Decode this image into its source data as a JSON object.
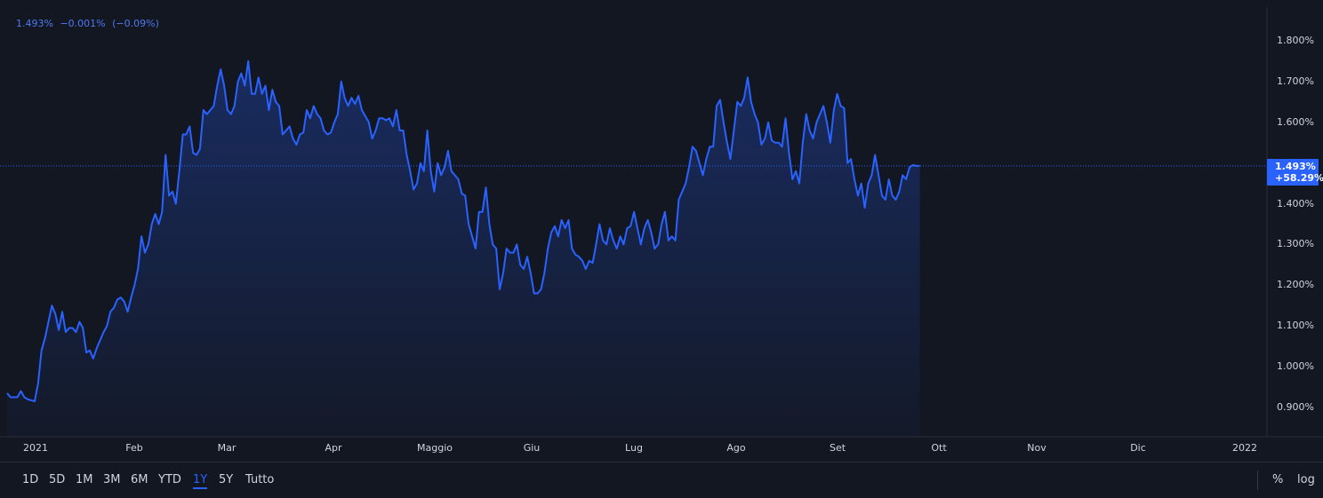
{
  "legend": {
    "value": "1.493%",
    "change": "−0.001%",
    "change_pct": "(−0.09%)"
  },
  "price_tag": {
    "value": "1.493%",
    "change_pct": "+58.29%"
  },
  "colors": {
    "line": "#2962ff",
    "background": "#131722",
    "accent": "#2962ff"
  },
  "toolbar": {
    "ranges": [
      "1D",
      "5D",
      "1M",
      "3M",
      "6M",
      "YTD",
      "1Y",
      "5Y",
      "Tutto"
    ],
    "active_range": "1Y",
    "percent_label": "%",
    "log_label": "log"
  },
  "chart_data": {
    "type": "area",
    "x_ticks": [
      "2021",
      "Feb",
      "Mar",
      "Apr",
      "Maggio",
      "Giu",
      "Lug",
      "Ago",
      "Set",
      "Ott",
      "Nov",
      "Dic",
      "2022"
    ],
    "y_ticks": [
      "1.800%",
      "1.700%",
      "1.600%",
      "1.500%",
      "1.400%",
      "1.300%",
      "1.200%",
      "1.100%",
      "1.000%",
      "0.900%"
    ],
    "y_tick_values": [
      1.8,
      1.7,
      1.6,
      1.5,
      1.4,
      1.3,
      1.2,
      1.1,
      1.0,
      0.9
    ],
    "ylim": [
      0.85,
      1.86
    ],
    "x_range": [
      "2021-01-01",
      "2022-01-01"
    ],
    "last_value": 1.493,
    "grid": false,
    "series": [
      {
        "values": [
          [
            "2021-01-01",
            0.935
          ],
          [
            "2021-01-02",
            0.925
          ],
          [
            "2021-01-04",
            0.925
          ],
          [
            "2021-01-05",
            0.94
          ],
          [
            "2021-01-06",
            0.925
          ],
          [
            "2021-01-07",
            0.92
          ],
          [
            "2021-01-09",
            0.915
          ],
          [
            "2021-01-10",
            0.96
          ],
          [
            "2021-01-11",
            1.04
          ],
          [
            "2021-01-12",
            1.07
          ],
          [
            "2021-01-14",
            1.15
          ],
          [
            "2021-01-15",
            1.13
          ],
          [
            "2021-01-16",
            1.09
          ],
          [
            "2021-01-17",
            1.135
          ],
          [
            "2021-01-18",
            1.085
          ],
          [
            "2021-01-19",
            1.095
          ],
          [
            "2021-01-20",
            1.095
          ],
          [
            "2021-01-21",
            1.085
          ],
          [
            "2021-01-22",
            1.11
          ],
          [
            "2021-01-23",
            1.095
          ],
          [
            "2021-01-24",
            1.035
          ],
          [
            "2021-01-25",
            1.04
          ],
          [
            "2021-01-26",
            1.02
          ],
          [
            "2021-01-27",
            1.045
          ],
          [
            "2021-01-28",
            1.065
          ],
          [
            "2021-01-29",
            1.085
          ],
          [
            "2021-01-30",
            1.1
          ],
          [
            "2021-01-31",
            1.135
          ],
          [
            "2021-02-01",
            1.145
          ],
          [
            "2021-02-02",
            1.165
          ],
          [
            "2021-02-03",
            1.17
          ],
          [
            "2021-02-04",
            1.16
          ],
          [
            "2021-02-05",
            1.135
          ],
          [
            "2021-02-06",
            1.17
          ],
          [
            "2021-02-07",
            1.2
          ],
          [
            "2021-02-08",
            1.24
          ],
          [
            "2021-02-09",
            1.32
          ],
          [
            "2021-02-10",
            1.28
          ],
          [
            "2021-02-11",
            1.3
          ],
          [
            "2021-02-12",
            1.35
          ],
          [
            "2021-02-13",
            1.375
          ],
          [
            "2021-02-14",
            1.35
          ],
          [
            "2021-02-15",
            1.38
          ],
          [
            "2021-02-16",
            1.52
          ],
          [
            "2021-02-17",
            1.42
          ],
          [
            "2021-02-18",
            1.43
          ],
          [
            "2021-02-19",
            1.4
          ],
          [
            "2021-02-20",
            1.48
          ],
          [
            "2021-02-21",
            1.57
          ],
          [
            "2021-02-22",
            1.57
          ],
          [
            "2021-02-23",
            1.59
          ],
          [
            "2021-02-24",
            1.525
          ],
          [
            "2021-02-25",
            1.52
          ],
          [
            "2021-02-26",
            1.535
          ],
          [
            "2021-02-27",
            1.63
          ],
          [
            "2021-02-28",
            1.62
          ],
          [
            "2021-03-01",
            1.63
          ],
          [
            "2021-03-02",
            1.64
          ],
          [
            "2021-03-03",
            1.69
          ],
          [
            "2021-03-04",
            1.73
          ],
          [
            "2021-03-05",
            1.69
          ],
          [
            "2021-03-06",
            1.63
          ],
          [
            "2021-03-07",
            1.62
          ],
          [
            "2021-03-08",
            1.64
          ],
          [
            "2021-03-09",
            1.7
          ],
          [
            "2021-03-10",
            1.72
          ],
          [
            "2021-03-11",
            1.69
          ],
          [
            "2021-03-12",
            1.75
          ],
          [
            "2021-03-13",
            1.67
          ],
          [
            "2021-03-14",
            1.67
          ],
          [
            "2021-03-15",
            1.71
          ],
          [
            "2021-03-16",
            1.67
          ],
          [
            "2021-03-17",
            1.69
          ],
          [
            "2021-03-18",
            1.63
          ],
          [
            "2021-03-19",
            1.68
          ],
          [
            "2021-03-20",
            1.65
          ],
          [
            "2021-03-21",
            1.64
          ],
          [
            "2021-03-22",
            1.57
          ],
          [
            "2021-03-23",
            1.58
          ],
          [
            "2021-03-24",
            1.59
          ],
          [
            "2021-03-25",
            1.56
          ],
          [
            "2021-03-26",
            1.545
          ],
          [
            "2021-03-27",
            1.57
          ],
          [
            "2021-03-28",
            1.575
          ],
          [
            "2021-03-29",
            1.63
          ],
          [
            "2021-03-30",
            1.61
          ],
          [
            "2021-03-31",
            1.64
          ],
          [
            "2021-04-01",
            1.62
          ],
          [
            "2021-04-02",
            1.61
          ],
          [
            "2021-04-03",
            1.58
          ],
          [
            "2021-04-04",
            1.57
          ],
          [
            "2021-04-05",
            1.575
          ],
          [
            "2021-04-06",
            1.6
          ],
          [
            "2021-04-07",
            1.62
          ],
          [
            "2021-04-08",
            1.7
          ],
          [
            "2021-04-09",
            1.66
          ],
          [
            "2021-04-10",
            1.64
          ],
          [
            "2021-04-11",
            1.66
          ],
          [
            "2021-04-12",
            1.645
          ],
          [
            "2021-04-13",
            1.665
          ],
          [
            "2021-04-14",
            1.63
          ],
          [
            "2021-04-15",
            1.615
          ],
          [
            "2021-04-16",
            1.6
          ],
          [
            "2021-04-17",
            1.56
          ],
          [
            "2021-04-18",
            1.58
          ],
          [
            "2021-04-19",
            1.61
          ],
          [
            "2021-04-20",
            1.61
          ],
          [
            "2021-04-21",
            1.605
          ],
          [
            "2021-04-22",
            1.61
          ],
          [
            "2021-04-23",
            1.59
          ],
          [
            "2021-04-24",
            1.63
          ],
          [
            "2021-04-25",
            1.58
          ],
          [
            "2021-04-26",
            1.58
          ],
          [
            "2021-04-27",
            1.52
          ],
          [
            "2021-04-28",
            1.48
          ],
          [
            "2021-04-29",
            1.435
          ],
          [
            "2021-04-30",
            1.45
          ],
          [
            "2021-05-01",
            1.5
          ],
          [
            "2021-05-02",
            1.48
          ],
          [
            "2021-05-03",
            1.58
          ],
          [
            "2021-05-04",
            1.48
          ],
          [
            "2021-05-05",
            1.43
          ],
          [
            "2021-05-06",
            1.5
          ],
          [
            "2021-05-07",
            1.47
          ],
          [
            "2021-05-08",
            1.49
          ],
          [
            "2021-05-09",
            1.53
          ],
          [
            "2021-05-10",
            1.48
          ],
          [
            "2021-05-11",
            1.47
          ],
          [
            "2021-05-12",
            1.46
          ],
          [
            "2021-05-13",
            1.425
          ],
          [
            "2021-05-14",
            1.42
          ],
          [
            "2021-05-15",
            1.35
          ],
          [
            "2021-05-16",
            1.32
          ],
          [
            "2021-05-17",
            1.29
          ],
          [
            "2021-05-18",
            1.38
          ],
          [
            "2021-05-19",
            1.38
          ],
          [
            "2021-05-20",
            1.44
          ],
          [
            "2021-05-21",
            1.35
          ],
          [
            "2021-05-22",
            1.3
          ],
          [
            "2021-05-23",
            1.29
          ],
          [
            "2021-05-24",
            1.19
          ],
          [
            "2021-05-25",
            1.23
          ],
          [
            "2021-05-26",
            1.29
          ],
          [
            "2021-05-27",
            1.28
          ],
          [
            "2021-05-28",
            1.28
          ],
          [
            "2021-05-29",
            1.3
          ],
          [
            "2021-05-30",
            1.25
          ],
          [
            "2021-05-31",
            1.24
          ],
          [
            "2021-06-01",
            1.27
          ],
          [
            "2021-06-02",
            1.23
          ],
          [
            "2021-06-03",
            1.18
          ],
          [
            "2021-06-04",
            1.18
          ],
          [
            "2021-06-05",
            1.19
          ],
          [
            "2021-06-06",
            1.23
          ],
          [
            "2021-06-07",
            1.29
          ],
          [
            "2021-06-08",
            1.33
          ],
          [
            "2021-06-09",
            1.345
          ],
          [
            "2021-06-10",
            1.32
          ],
          [
            "2021-06-11",
            1.36
          ],
          [
            "2021-06-12",
            1.34
          ],
          [
            "2021-06-13",
            1.36
          ],
          [
            "2021-06-14",
            1.29
          ],
          [
            "2021-06-15",
            1.275
          ],
          [
            "2021-06-16",
            1.27
          ],
          [
            "2021-06-17",
            1.26
          ],
          [
            "2021-06-18",
            1.24
          ],
          [
            "2021-06-19",
            1.26
          ],
          [
            "2021-06-20",
            1.255
          ],
          [
            "2021-06-21",
            1.3
          ],
          [
            "2021-06-22",
            1.35
          ],
          [
            "2021-06-23",
            1.31
          ],
          [
            "2021-06-24",
            1.3
          ],
          [
            "2021-06-25",
            1.34
          ],
          [
            "2021-06-26",
            1.31
          ],
          [
            "2021-06-27",
            1.29
          ],
          [
            "2021-06-28",
            1.32
          ],
          [
            "2021-06-29",
            1.3
          ],
          [
            "2021-06-30",
            1.34
          ],
          [
            "2021-07-01",
            1.345
          ],
          [
            "2021-07-02",
            1.38
          ],
          [
            "2021-07-03",
            1.34
          ],
          [
            "2021-07-04",
            1.3
          ],
          [
            "2021-07-05",
            1.34
          ],
          [
            "2021-07-06",
            1.36
          ],
          [
            "2021-07-07",
            1.33
          ],
          [
            "2021-07-08",
            1.29
          ],
          [
            "2021-07-09",
            1.3
          ],
          [
            "2021-07-10",
            1.35
          ],
          [
            "2021-07-11",
            1.38
          ],
          [
            "2021-07-12",
            1.31
          ],
          [
            "2021-07-13",
            1.32
          ],
          [
            "2021-07-14",
            1.31
          ],
          [
            "2021-07-15",
            1.41
          ],
          [
            "2021-07-16",
            1.43
          ],
          [
            "2021-07-17",
            1.45
          ],
          [
            "2021-07-18",
            1.49
          ],
          [
            "2021-07-19",
            1.54
          ],
          [
            "2021-07-20",
            1.53
          ],
          [
            "2021-07-21",
            1.5
          ],
          [
            "2021-07-22",
            1.47
          ],
          [
            "2021-07-23",
            1.51
          ],
          [
            "2021-07-24",
            1.54
          ],
          [
            "2021-07-25",
            1.54
          ],
          [
            "2021-07-26",
            1.64
          ],
          [
            "2021-07-27",
            1.655
          ],
          [
            "2021-07-28",
            1.6
          ],
          [
            "2021-07-29",
            1.55
          ],
          [
            "2021-07-30",
            1.51
          ],
          [
            "2021-07-31",
            1.58
          ],
          [
            "2021-08-01",
            1.65
          ],
          [
            "2021-08-02",
            1.64
          ],
          [
            "2021-08-03",
            1.66
          ],
          [
            "2021-08-04",
            1.71
          ],
          [
            "2021-08-05",
            1.65
          ],
          [
            "2021-08-06",
            1.62
          ],
          [
            "2021-08-07",
            1.6
          ],
          [
            "2021-08-08",
            1.545
          ],
          [
            "2021-08-09",
            1.56
          ],
          [
            "2021-08-10",
            1.6
          ],
          [
            "2021-08-11",
            1.555
          ],
          [
            "2021-08-12",
            1.55
          ],
          [
            "2021-08-13",
            1.55
          ],
          [
            "2021-08-14",
            1.54
          ],
          [
            "2021-08-15",
            1.61
          ],
          [
            "2021-08-16",
            1.525
          ],
          [
            "2021-08-17",
            1.46
          ],
          [
            "2021-08-18",
            1.48
          ],
          [
            "2021-08-19",
            1.45
          ],
          [
            "2021-08-20",
            1.55
          ],
          [
            "2021-08-21",
            1.62
          ],
          [
            "2021-08-22",
            1.58
          ],
          [
            "2021-08-23",
            1.56
          ],
          [
            "2021-08-24",
            1.6
          ],
          [
            "2021-08-25",
            1.62
          ],
          [
            "2021-08-26",
            1.64
          ],
          [
            "2021-08-27",
            1.6
          ],
          [
            "2021-08-28",
            1.55
          ],
          [
            "2021-08-29",
            1.63
          ],
          [
            "2021-08-30",
            1.67
          ],
          [
            "2021-08-31",
            1.64
          ],
          [
            "2021-09-01",
            1.635
          ],
          [
            "2021-09-02",
            1.5
          ],
          [
            "2021-09-03",
            1.51
          ],
          [
            "2021-09-04",
            1.46
          ],
          [
            "2021-09-05",
            1.42
          ],
          [
            "2021-09-06",
            1.45
          ],
          [
            "2021-09-07",
            1.39
          ],
          [
            "2021-09-08",
            1.45
          ],
          [
            "2021-09-09",
            1.47
          ],
          [
            "2021-09-10",
            1.52
          ],
          [
            "2021-09-11",
            1.47
          ],
          [
            "2021-09-12",
            1.42
          ],
          [
            "2021-09-13",
            1.41
          ],
          [
            "2021-09-14",
            1.46
          ],
          [
            "2021-09-15",
            1.42
          ],
          [
            "2021-09-16",
            1.41
          ],
          [
            "2021-09-17",
            1.43
          ],
          [
            "2021-09-18",
            1.47
          ],
          [
            "2021-09-19",
            1.46
          ],
          [
            "2021-09-20",
            1.49
          ],
          [
            "2021-09-21",
            1.495
          ],
          [
            "2021-09-22",
            1.493
          ],
          [
            "2021-09-23",
            1.493
          ]
        ]
      }
    ]
  }
}
